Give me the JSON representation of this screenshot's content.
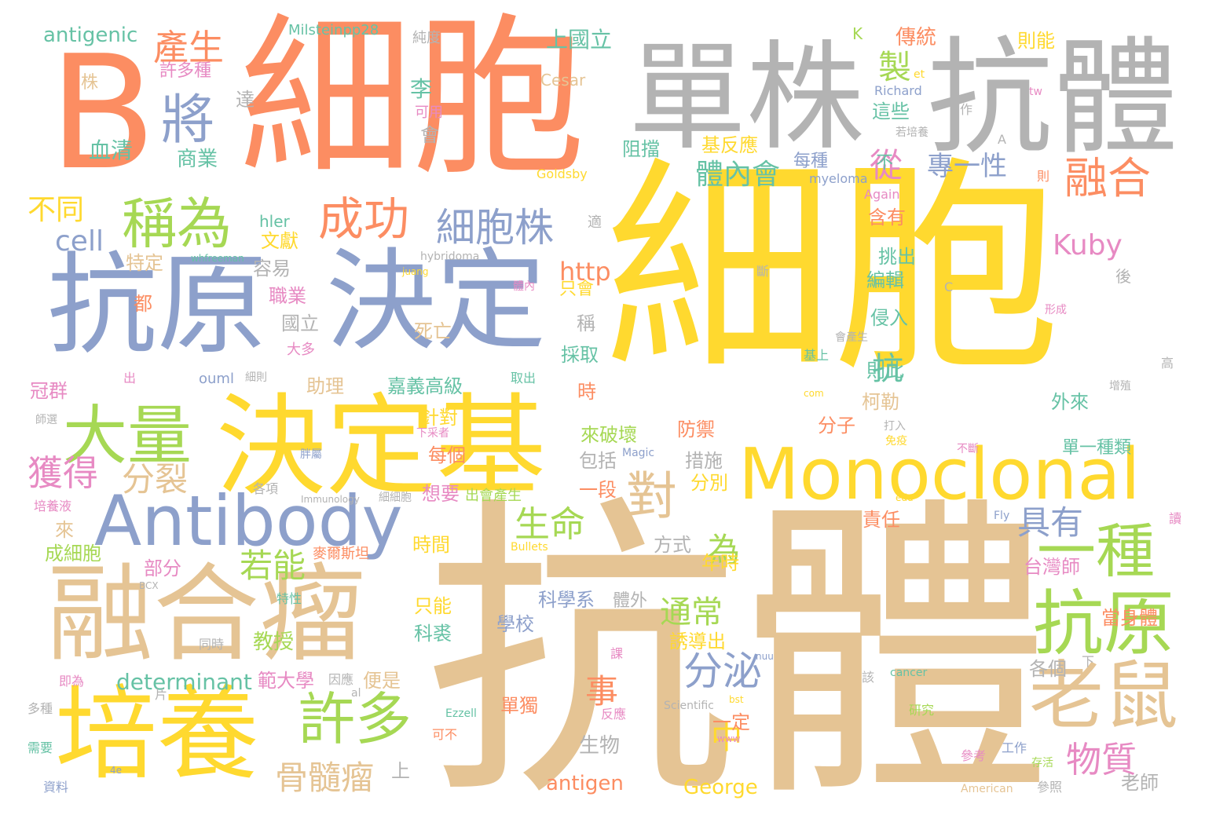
{
  "palette": {
    "yellow": "#ffd92f",
    "tan": "#e5c494",
    "gray": "#b3b3b3",
    "orange": "#fc8d62",
    "blue": "#8da0cb",
    "green": "#a6d854",
    "pink": "#e78ac3",
    "teal": "#66c2a5"
  },
  "words": [
    {
      "text": "細胞",
      "color": "yellow"
    },
    {
      "text": "抗體",
      "color": "tan"
    },
    {
      "text": "B",
      "color": "orange"
    },
    {
      "text": "細胞",
      "color": "orange"
    },
    {
      "text": "單株",
      "color": "gray"
    },
    {
      "text": "抗體",
      "color": "gray"
    },
    {
      "text": "抗原",
      "color": "blue"
    },
    {
      "text": "決定",
      "color": "blue"
    },
    {
      "text": "決定基",
      "color": "yellow"
    },
    {
      "text": "Monoclonal",
      "color": "yellow"
    },
    {
      "text": "Antibody",
      "color": "blue"
    },
    {
      "text": "融合瘤",
      "color": "tan"
    },
    {
      "text": "培養",
      "color": "yellow"
    },
    {
      "text": "大量",
      "color": "green"
    },
    {
      "text": "抗原",
      "color": "green"
    },
    {
      "text": "老鼠",
      "color": "tan"
    },
    {
      "text": "一種",
      "color": "green"
    },
    {
      "text": "稱為",
      "color": "green"
    },
    {
      "text": "將",
      "color": "blue"
    },
    {
      "text": "成功",
      "color": "orange"
    },
    {
      "text": "細胞株",
      "color": "blue"
    },
    {
      "text": "許多",
      "color": "green"
    },
    {
      "text": "融合",
      "color": "orange"
    },
    {
      "text": "對",
      "color": "tan"
    },
    {
      "text": "產生",
      "color": "orange"
    },
    {
      "text": "製",
      "color": "green"
    },
    {
      "text": "從",
      "color": "pink"
    },
    {
      "text": "獲得",
      "color": "pink"
    },
    {
      "text": "分裂",
      "color": "tan"
    },
    {
      "text": "骨髓瘤",
      "color": "tan"
    },
    {
      "text": "物質",
      "color": "pink"
    },
    {
      "text": "分泌",
      "color": "blue"
    },
    {
      "text": "若能",
      "color": "green"
    },
    {
      "text": "生命",
      "color": "green"
    },
    {
      "text": "具有",
      "color": "blue"
    },
    {
      "text": "通常",
      "color": "green"
    },
    {
      "text": "不同",
      "color": "yellow"
    },
    {
      "text": "cell",
      "color": "blue"
    },
    {
      "text": "Kuby",
      "color": "pink"
    },
    {
      "text": "體內會",
      "color": "teal"
    },
    {
      "text": "專一性",
      "color": "blue"
    },
    {
      "text": "事",
      "color": "orange"
    },
    {
      "text": "中",
      "color": "yellow"
    },
    {
      "text": "為",
      "color": "green"
    },
    {
      "text": "抗",
      "color": "teal"
    },
    {
      "text": "http",
      "color": "orange"
    },
    {
      "text": "determinant",
      "color": "teal"
    },
    {
      "text": "antigen",
      "color": "orange"
    },
    {
      "text": "antigenic",
      "color": "teal"
    },
    {
      "text": "George",
      "color": "yellow"
    },
    {
      "text": "Milsteinpp28",
      "color": "teal"
    },
    {
      "text": "上國立",
      "color": "teal"
    },
    {
      "text": "血清",
      "color": "teal"
    },
    {
      "text": "商業",
      "color": "teal"
    },
    {
      "text": "許多種",
      "color": "pink"
    },
    {
      "text": "株",
      "color": "tan"
    },
    {
      "text": "達",
      "color": "gray"
    },
    {
      "text": "李",
      "color": "teal"
    },
    {
      "text": "可用",
      "color": "pink"
    },
    {
      "text": "會",
      "color": "gray"
    },
    {
      "text": "Cesar",
      "color": "tan"
    },
    {
      "text": "純度",
      "color": "gray"
    },
    {
      "text": "傳統",
      "color": "orange"
    },
    {
      "text": "則能",
      "color": "yellow"
    },
    {
      "text": "K",
      "color": "green"
    },
    {
      "text": "et",
      "color": "yellow"
    },
    {
      "text": "Richard",
      "color": "blue"
    },
    {
      "text": "tw",
      "color": "pink"
    },
    {
      "text": "這些",
      "color": "teal"
    },
    {
      "text": "若培養",
      "color": "gray"
    },
    {
      "text": "作",
      "color": "gray"
    },
    {
      "text": "A",
      "color": "gray"
    },
    {
      "text": "阻擋",
      "color": "teal"
    },
    {
      "text": "基反應",
      "color": "yellow"
    },
    {
      "text": "每種",
      "color": "blue"
    },
    {
      "text": "myeloma",
      "color": "blue"
    },
    {
      "text": "不",
      "color": "teal"
    },
    {
      "text": "則",
      "color": "orange"
    },
    {
      "text": "Goldsby",
      "color": "yellow"
    },
    {
      "text": "Again",
      "color": "pink"
    },
    {
      "text": "含有",
      "color": "orange"
    },
    {
      "text": "適",
      "color": "gray"
    },
    {
      "text": "hler",
      "color": "teal"
    },
    {
      "text": "文獻",
      "color": "yellow"
    },
    {
      "text": "特定",
      "color": "tan"
    },
    {
      "text": "whfreeman",
      "color": "teal"
    },
    {
      "text": "hybridoma",
      "color": "gray"
    },
    {
      "text": "容易",
      "color": "gray"
    },
    {
      "text": "juang",
      "color": "yellow"
    },
    {
      "text": "挑出",
      "color": "teal"
    },
    {
      "text": "編輯",
      "color": "teal"
    },
    {
      "text": "斷",
      "color": "gray"
    },
    {
      "text": "後",
      "color": "gray"
    },
    {
      "text": "C",
      "color": "gray"
    },
    {
      "text": "都",
      "color": "orange"
    },
    {
      "text": "職業",
      "color": "pink"
    },
    {
      "text": "只會",
      "color": "yellow"
    },
    {
      "text": "體內",
      "color": "pink"
    },
    {
      "text": "國立",
      "color": "gray"
    },
    {
      "text": "稱",
      "color": "gray"
    },
    {
      "text": "侵入",
      "color": "teal"
    },
    {
      "text": "形成",
      "color": "pink"
    },
    {
      "text": "死亡",
      "color": "tan"
    },
    {
      "text": "大多",
      "color": "pink"
    },
    {
      "text": "會產生",
      "color": "gray"
    },
    {
      "text": "基上",
      "color": "teal"
    },
    {
      "text": "採取",
      "color": "teal"
    },
    {
      "text": "則此",
      "color": "teal"
    },
    {
      "text": "高",
      "color": "gray"
    },
    {
      "text": "柯勒",
      "color": "tan"
    },
    {
      "text": "增殖",
      "color": "gray"
    },
    {
      "text": "冠群",
      "color": "pink"
    },
    {
      "text": "出",
      "color": "pink"
    },
    {
      "text": "ouml",
      "color": "blue"
    },
    {
      "text": "細則",
      "color": "gray"
    },
    {
      "text": "助理",
      "color": "tan"
    },
    {
      "text": "嘉義高級",
      "color": "teal"
    },
    {
      "text": "取出",
      "color": "teal"
    },
    {
      "text": "時",
      "color": "orange"
    },
    {
      "text": "com",
      "color": "yellow"
    },
    {
      "text": "外來",
      "color": "teal"
    },
    {
      "text": "師選",
      "color": "gray"
    },
    {
      "text": "針對",
      "color": "yellow"
    },
    {
      "text": "下采者",
      "color": "pink"
    },
    {
      "text": "來破壞",
      "color": "green"
    },
    {
      "text": "防禦",
      "color": "orange"
    },
    {
      "text": "分子",
      "color": "orange"
    },
    {
      "text": "打入",
      "color": "gray"
    },
    {
      "text": "免疫",
      "color": "yellow"
    },
    {
      "text": "不斷",
      "color": "pink"
    },
    {
      "text": "單一種類",
      "color": "teal"
    },
    {
      "text": "每個",
      "color": "orange"
    },
    {
      "text": "包括",
      "color": "gray"
    },
    {
      "text": "Magic",
      "color": "blue"
    },
    {
      "text": "措施",
      "color": "gray"
    },
    {
      "text": "胖屬",
      "color": "blue"
    },
    {
      "text": "分別",
      "color": "yellow"
    },
    {
      "text": "各項",
      "color": "gray"
    },
    {
      "text": "Immunology",
      "color": "gray"
    },
    {
      "text": "想要",
      "color": "pink"
    },
    {
      "text": "出會產生",
      "color": "green"
    },
    {
      "text": "一段",
      "color": "orange"
    },
    {
      "text": "edu",
      "color": "yellow"
    },
    {
      "text": "培養液",
      "color": "pink"
    },
    {
      "text": "細細胞",
      "color": "gray"
    },
    {
      "text": "責任",
      "color": "orange"
    },
    {
      "text": "Fly",
      "color": "blue"
    },
    {
      "text": "讀",
      "color": "pink"
    },
    {
      "text": "來",
      "color": "tan"
    },
    {
      "text": "時間",
      "color": "yellow"
    },
    {
      "text": "方式",
      "color": "gray"
    },
    {
      "text": "成細胞",
      "color": "green"
    },
    {
      "text": "麥爾斯坦",
      "color": "orange"
    },
    {
      "text": "Bullets",
      "color": "yellow"
    },
    {
      "text": "部分",
      "color": "pink"
    },
    {
      "text": "年時",
      "color": "yellow"
    },
    {
      "text": "台灣師",
      "color": "pink"
    },
    {
      "text": "BCX",
      "color": "gray"
    },
    {
      "text": "特性",
      "color": "teal"
    },
    {
      "text": "科學系",
      "color": "blue"
    },
    {
      "text": "體外",
      "color": "gray"
    },
    {
      "text": "學校",
      "color": "blue"
    },
    {
      "text": "只能",
      "color": "yellow"
    },
    {
      "text": "當身體",
      "color": "orange"
    },
    {
      "text": "同時",
      "color": "gray"
    },
    {
      "text": "教授",
      "color": "green"
    },
    {
      "text": "誘導出",
      "color": "yellow"
    },
    {
      "text": "科裘",
      "color": "teal"
    },
    {
      "text": "nuu",
      "color": "blue"
    },
    {
      "text": "即為",
      "color": "pink"
    },
    {
      "text": "範大學",
      "color": "pink"
    },
    {
      "text": "因應",
      "color": "gray"
    },
    {
      "text": "便是",
      "color": "tan"
    },
    {
      "text": "課",
      "color": "pink"
    },
    {
      "text": "下",
      "color": "gray"
    },
    {
      "text": "各個",
      "color": "gray"
    },
    {
      "text": "片",
      "color": "gray"
    },
    {
      "text": "al",
      "color": "gray"
    },
    {
      "text": "cancer",
      "color": "teal"
    },
    {
      "text": "該",
      "color": "gray"
    },
    {
      "text": "多種",
      "color": "gray"
    },
    {
      "text": "Scientific",
      "color": "gray"
    },
    {
      "text": "bst",
      "color": "yellow"
    },
    {
      "text": "研究",
      "color": "green"
    },
    {
      "text": "Ezzell",
      "color": "teal"
    },
    {
      "text": "單獨",
      "color": "orange"
    },
    {
      "text": "反應",
      "color": "pink"
    },
    {
      "text": "一定",
      "color": "orange"
    },
    {
      "text": "可不",
      "color": "orange"
    },
    {
      "text": "www",
      "color": "pink"
    },
    {
      "text": "生物",
      "color": "gray"
    },
    {
      "text": "工作",
      "color": "blue"
    },
    {
      "text": "存活",
      "color": "green"
    },
    {
      "text": "參考",
      "color": "pink"
    },
    {
      "text": "需要",
      "color": "teal"
    },
    {
      "text": "4e",
      "color": "blue"
    },
    {
      "text": "上",
      "color": "gray"
    },
    {
      "text": "資料",
      "color": "blue"
    },
    {
      "text": "American",
      "color": "tan"
    },
    {
      "text": "參照",
      "color": "gray"
    },
    {
      "text": "老師",
      "color": "gray"
    }
  ]
}
